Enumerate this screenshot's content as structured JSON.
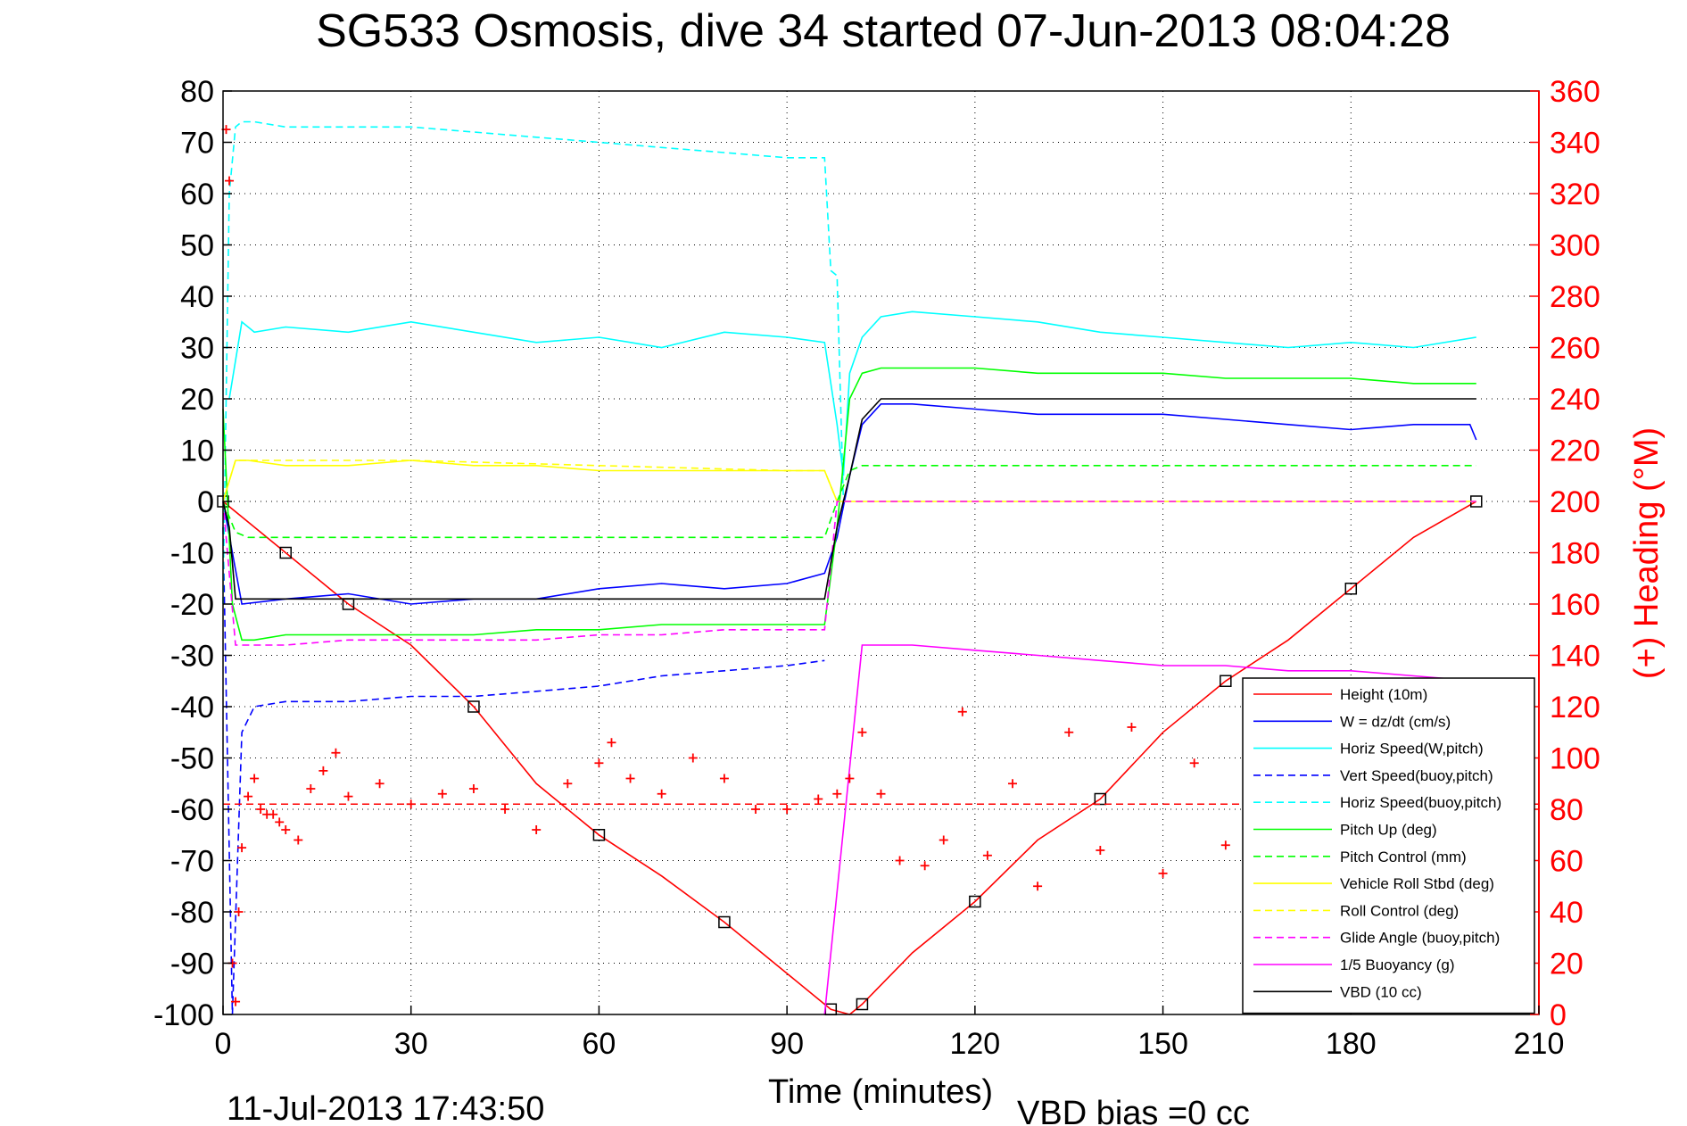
{
  "chart_data": {
    "type": "line",
    "title": "SG533 Osmosis, dive 34 started 07-Jun-2013 08:04:28",
    "xlabel": "Time (minutes)",
    "ylabel": "",
    "ylabel_right": "(+) Heading (°M)",
    "xlim": [
      0,
      210
    ],
    "ylim": [
      -100,
      80
    ],
    "ylim_right": [
      0,
      360
    ],
    "x_ticks": [
      "0",
      "30",
      "60",
      "90",
      "120",
      "150",
      "180",
      "210"
    ],
    "y_ticks": [
      "80",
      "70",
      "60",
      "50",
      "40",
      "30",
      "20",
      "10",
      "0",
      "-10",
      "-20",
      "-30",
      "-40",
      "-50",
      "-60",
      "-70",
      "-80",
      "-90",
      "-100"
    ],
    "y_ticks_right": [
      "360",
      "340",
      "320",
      "300",
      "280",
      "260",
      "240",
      "220",
      "200",
      "180",
      "160",
      "140",
      "120",
      "100",
      "80",
      "60",
      "40",
      "20",
      "0"
    ],
    "grid": "dotted",
    "legend_position": "bottom-right",
    "footer_left": "11-Jul-2013 17:43:50",
    "footer_right": "VBD bias =0 cc",
    "series": [
      {
        "name": "Height (10m)",
        "color": "#ff0000",
        "style": "solid",
        "x": [
          0,
          5,
          10,
          15,
          20,
          30,
          40,
          50,
          60,
          70,
          80,
          90,
          97,
          100,
          102,
          110,
          120,
          130,
          140,
          150,
          160,
          170,
          180,
          190,
          200
        ],
        "y": [
          0,
          -5,
          -10,
          -15,
          -20,
          -28,
          -40,
          -55,
          -65,
          -73,
          -82,
          -92,
          -99,
          -100,
          -98,
          -88,
          -78,
          -66,
          -58,
          -45,
          -35,
          -27,
          -17,
          -7,
          0
        ]
      },
      {
        "name": "W = dz/dt (cm/s)",
        "color": "#0000ff",
        "style": "solid",
        "x": [
          0,
          1.5,
          3,
          10,
          20,
          30,
          40,
          50,
          60,
          70,
          80,
          90,
          96,
          98,
          100,
          102,
          105,
          110,
          120,
          130,
          140,
          150,
          160,
          170,
          180,
          190,
          199,
          200
        ],
        "y": [
          0,
          -10,
          -20,
          -19,
          -18,
          -20,
          -19,
          -19,
          -17,
          -16,
          -17,
          -16,
          -14,
          -7,
          5,
          15,
          19,
          19,
          18,
          17,
          17,
          17,
          16,
          15,
          14,
          15,
          15,
          12
        ]
      },
      {
        "name": "Horiz Speed(W,pitch)",
        "color": "#00ffff",
        "style": "solid",
        "x": [
          1,
          3,
          5,
          10,
          20,
          30,
          40,
          50,
          60,
          70,
          80,
          90,
          96,
          98,
          99,
          100,
          102,
          105,
          110,
          120,
          130,
          140,
          150,
          160,
          170,
          180,
          190,
          200
        ],
        "y": [
          20,
          35,
          33,
          34,
          33,
          35,
          33,
          31,
          32,
          30,
          33,
          32,
          31,
          15,
          5,
          25,
          32,
          36,
          37,
          36,
          35,
          33,
          32,
          31,
          30,
          31,
          30,
          32
        ]
      },
      {
        "name": "Vert Speed(buoy,pitch)",
        "color": "#0000ff",
        "style": "dashed",
        "x": [
          0,
          1.5,
          3,
          5,
          10,
          20,
          30,
          40,
          50,
          60,
          70,
          80,
          90,
          96
        ],
        "y": [
          -5,
          -100,
          -45,
          -40,
          -39,
          -39,
          -38,
          -38,
          -37,
          -36,
          -34,
          -33,
          -32,
          -31
        ]
      },
      {
        "name": "Horiz Speed(buoy,pitch)",
        "color": "#00ffff",
        "style": "dashed",
        "x": [
          0,
          1,
          2,
          3,
          5,
          10,
          20,
          30,
          40,
          50,
          60,
          70,
          80,
          90,
          96,
          97,
          98,
          99,
          100
        ],
        "y": [
          -20,
          60,
          73,
          74,
          74,
          73,
          73,
          73,
          72,
          71,
          70,
          69,
          68,
          67,
          67,
          45,
          44,
          0,
          0
        ]
      },
      {
        "name": "Pitch Up (deg)",
        "color": "#00ff00",
        "style": "solid",
        "x": [
          0,
          1.5,
          3,
          5,
          10,
          20,
          30,
          40,
          50,
          60,
          70,
          80,
          90,
          96,
          98,
          100,
          102,
          105,
          110,
          120,
          130,
          140,
          150,
          160,
          170,
          180,
          190,
          200
        ],
        "y": [
          18,
          -20,
          -27,
          -27,
          -26,
          -26,
          -26,
          -26,
          -25,
          -25,
          -24,
          -24,
          -24,
          -24,
          -5,
          20,
          25,
          26,
          26,
          26,
          25,
          25,
          25,
          24,
          24,
          24,
          23,
          23
        ]
      },
      {
        "name": "Pitch Control (mm)",
        "color": "#00ff00",
        "style": "dashed",
        "x": [
          0,
          2,
          4,
          10,
          20,
          30,
          60,
          90,
          96,
          98,
          100,
          102,
          110,
          150,
          200
        ],
        "y": [
          0,
          -6,
          -7,
          -7,
          -7,
          -7,
          -7,
          -7,
          -7,
          0,
          6,
          7,
          7,
          7,
          7
        ]
      },
      {
        "name": "Vehicle Roll Stbd (deg)",
        "color": "#ffff00",
        "style": "solid",
        "x": [
          0,
          2,
          4,
          10,
          20,
          30,
          40,
          50,
          60,
          70,
          80,
          90,
          96,
          98,
          100,
          110,
          120,
          150,
          200
        ],
        "y": [
          0,
          8,
          8,
          7,
          7,
          8,
          7,
          7,
          6,
          6,
          6,
          6,
          6,
          0,
          0,
          0,
          0,
          0,
          0
        ]
      },
      {
        "name": "Roll Control (deg)",
        "color": "#ffff00",
        "style": "dashed",
        "x": [
          0,
          2,
          4,
          10,
          20,
          30,
          60,
          90,
          96,
          98,
          100,
          150,
          200
        ],
        "y": [
          0,
          8,
          8,
          8,
          8,
          8,
          7,
          6,
          6,
          0,
          0,
          0,
          0
        ]
      },
      {
        "name": "Glide Angle (buoy,pitch)",
        "color": "#ff00ff",
        "style": "dashed",
        "x": [
          0,
          2,
          4,
          10,
          20,
          30,
          40,
          50,
          60,
          70,
          80,
          90,
          96,
          98,
          100,
          150,
          200
        ],
        "y": [
          0,
          -28,
          -28,
          -28,
          -27,
          -27,
          -27,
          -27,
          -26,
          -26,
          -25,
          -25,
          -25,
          0,
          0,
          0,
          0
        ]
      },
      {
        "name": "1/5 Buoyancy (g)",
        "color": "#ff00ff",
        "style": "solid",
        "x": [
          96,
          102,
          110,
          120,
          130,
          140,
          150,
          160,
          170,
          180,
          190,
          200
        ],
        "y": [
          -100,
          -28,
          -28,
          -29,
          -30,
          -31,
          -32,
          -32,
          -33,
          -33,
          -34,
          -35
        ]
      },
      {
        "name": "VBD (10 cc)",
        "color": "#000000",
        "style": "solid",
        "x": [
          0,
          1,
          2,
          30,
          60,
          90,
          96,
          98,
          100,
          102,
          105,
          150,
          200
        ],
        "y": [
          0,
          -5,
          -19,
          -19,
          -19,
          -19,
          -19,
          -5,
          5,
          16,
          20,
          20,
          20
        ]
      }
    ],
    "heading_series": {
      "name": "(+) Heading",
      "color": "#ff0000",
      "marker": "plus",
      "axis": "right",
      "x": [
        0.5,
        1,
        1.5,
        2,
        2.5,
        3,
        4,
        5,
        6,
        7,
        8,
        9,
        10,
        12,
        14,
        16,
        18,
        20,
        25,
        30,
        35,
        40,
        45,
        50,
        55,
        60,
        62,
        65,
        70,
        75,
        80,
        85,
        90,
        95,
        98,
        100,
        102,
        105,
        108,
        112,
        115,
        118,
        122,
        126,
        130,
        135,
        140,
        145,
        150,
        155,
        160,
        165,
        170,
        175,
        180,
        185,
        190,
        195,
        200
      ],
      "y": [
        345,
        325,
        20,
        5,
        40,
        65,
        85,
        92,
        80,
        78,
        78,
        75,
        72,
        68,
        88,
        95,
        102,
        85,
        90,
        82,
        86,
        88,
        80,
        72,
        90,
        98,
        106,
        92,
        86,
        100,
        92,
        80,
        80,
        84,
        86,
        92,
        110,
        86,
        60,
        58,
        68,
        118,
        62,
        90,
        50,
        110,
        64,
        112,
        55,
        98,
        66,
        102,
        84,
        112,
        64,
        100,
        78,
        88,
        86
      ]
    },
    "heading_reference": 82
  }
}
